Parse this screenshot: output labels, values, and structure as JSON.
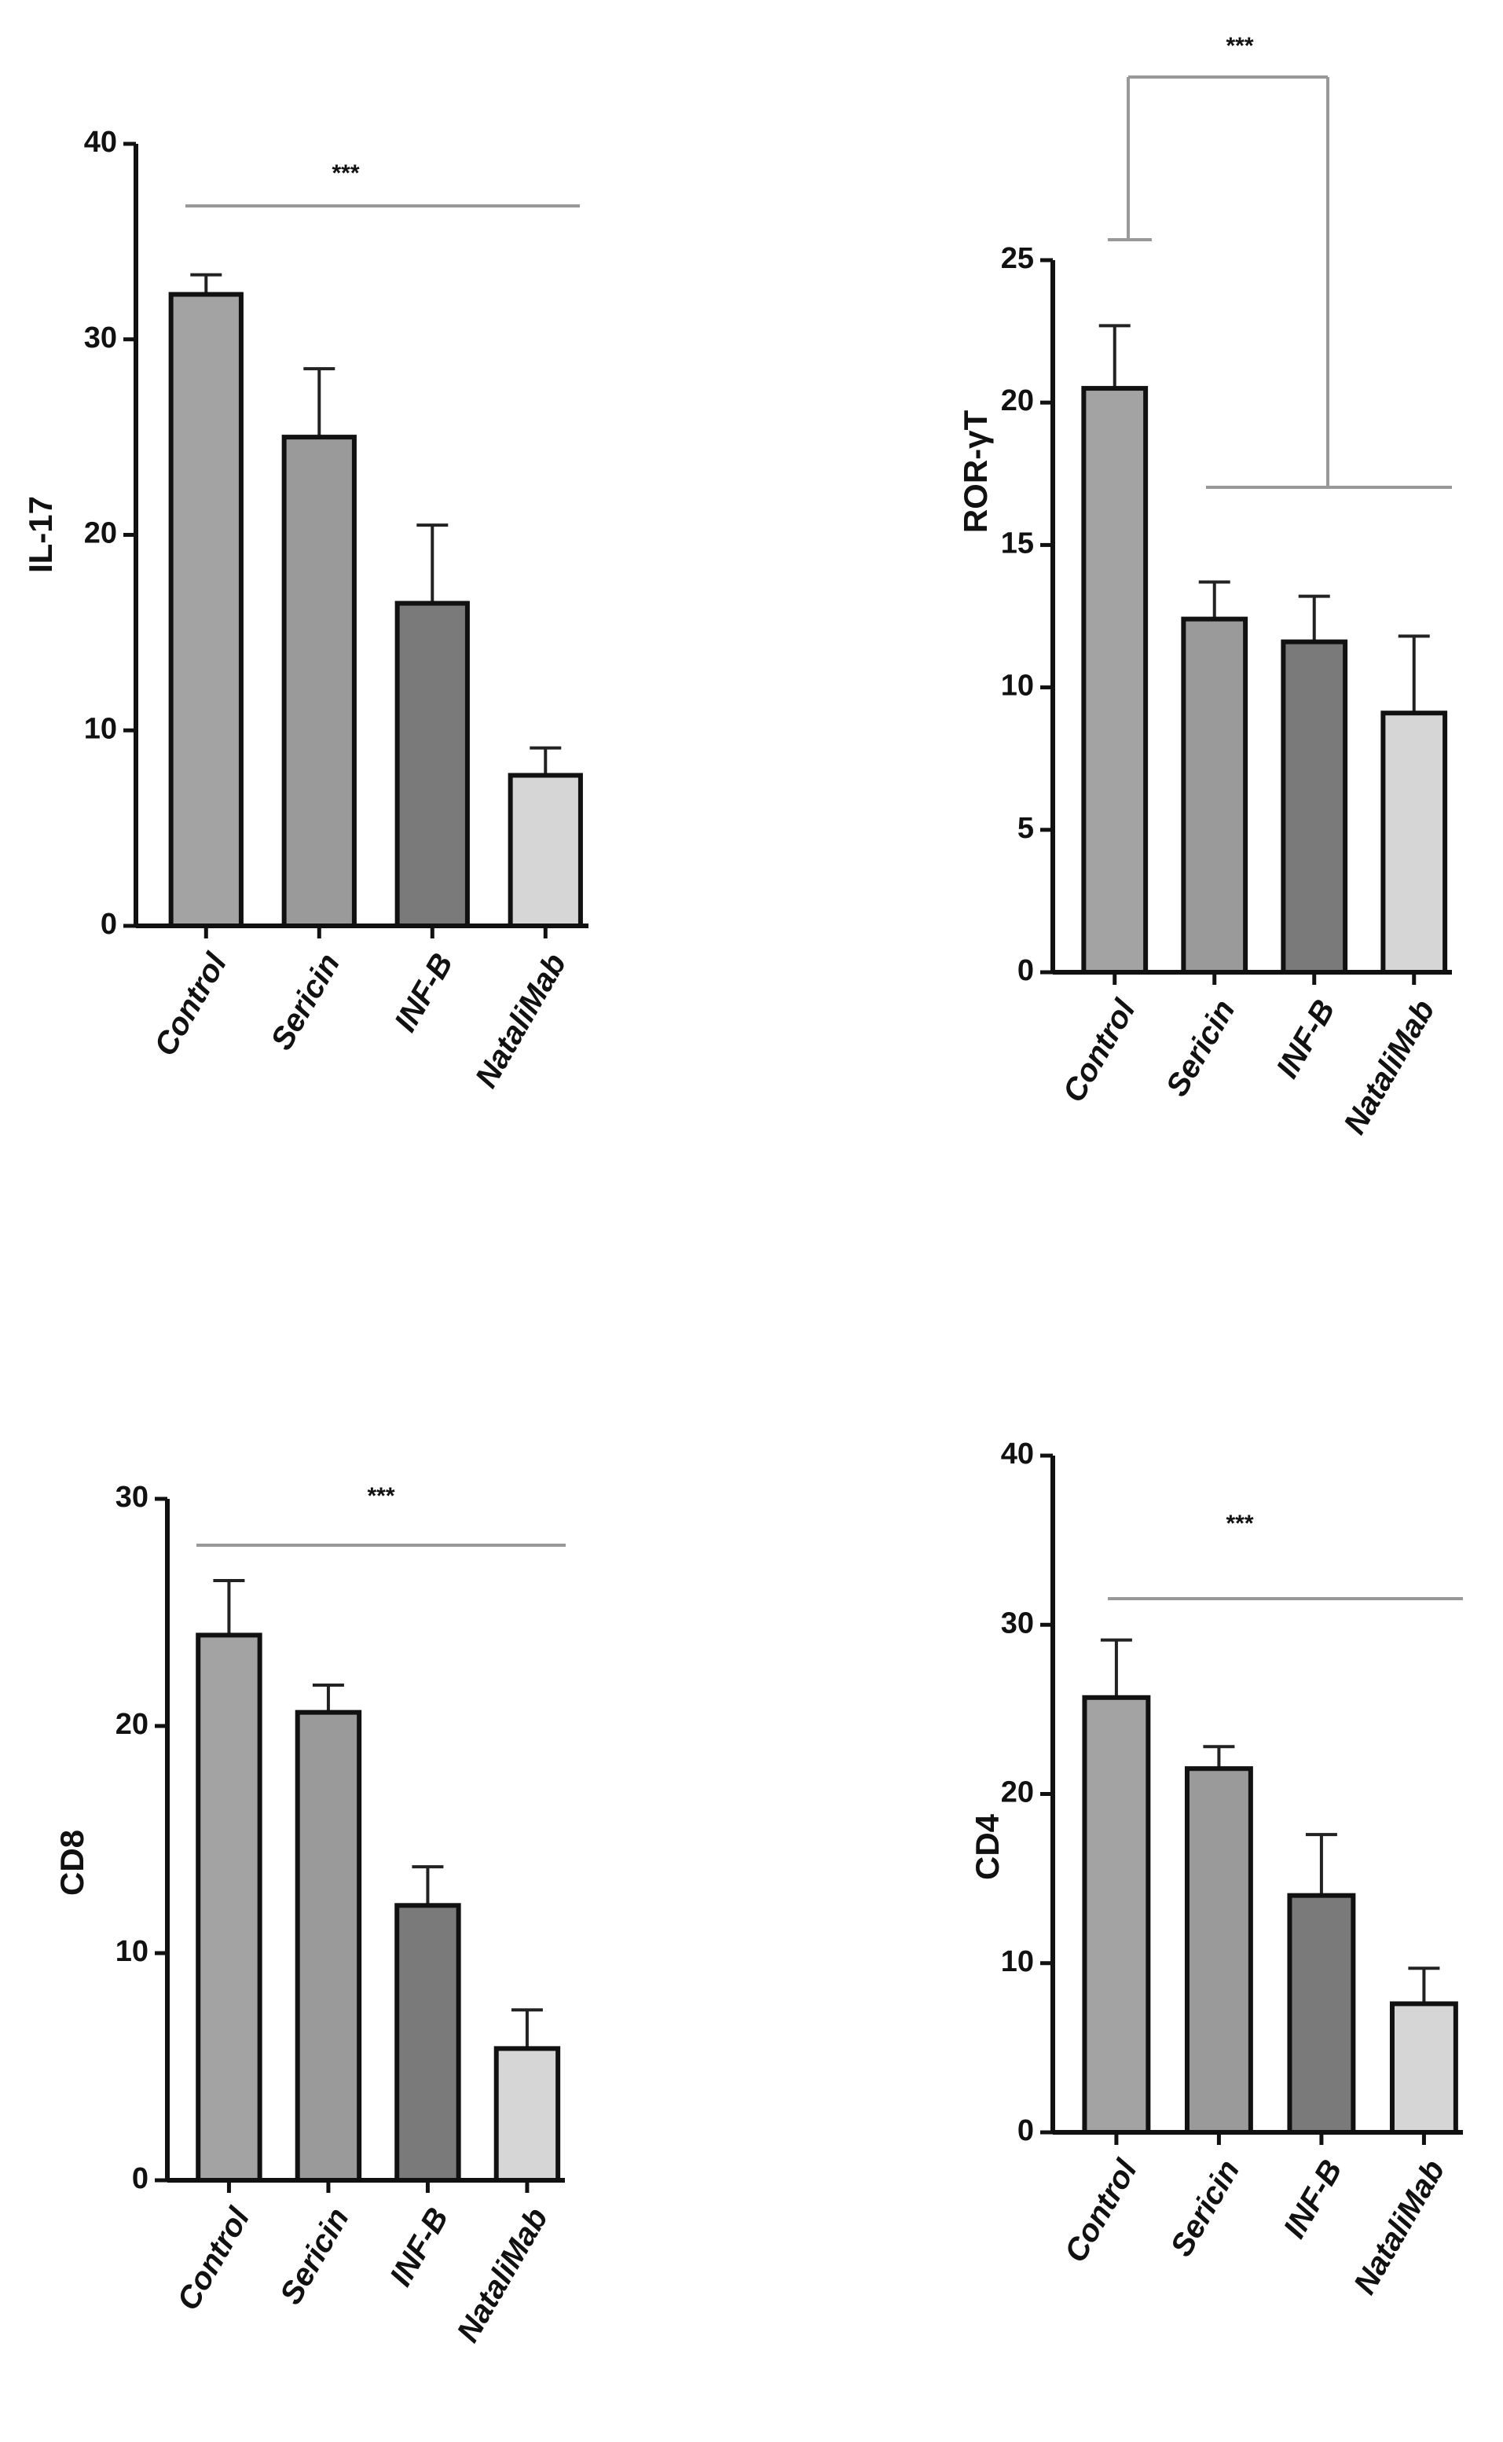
{
  "chart_data": [
    {
      "type": "bar",
      "ylabel": "IL-17",
      "annotation": "***",
      "categories": [
        "Control",
        "Sericin",
        "INF-B",
        "NataliMab"
      ],
      "values": [
        32.3,
        25,
        16.5,
        7.7
      ],
      "errors": [
        1,
        3.5,
        4,
        1.4
      ],
      "colors": [
        "#a3a3a3",
        "#9a9a9a",
        "#7a7a7a",
        "#d6d6d6"
      ],
      "ylim": [
        0,
        40
      ],
      "yticks": [
        0,
        10,
        20,
        30,
        40
      ]
    },
    {
      "type": "bar",
      "ylabel": "ROR-γT",
      "annotation": "***",
      "categories": [
        "Control",
        "Sericin",
        "INF-B",
        "NataliMab"
      ],
      "values": [
        20.5,
        12.4,
        11.6,
        9.1
      ],
      "errors": [
        2.2,
        1.3,
        1.6,
        2.7
      ],
      "colors": [
        "#a3a3a3",
        "#9a9a9a",
        "#7a7a7a",
        "#d6d6d6"
      ],
      "ylim": [
        0,
        25
      ],
      "yticks": [
        0,
        5,
        10,
        15,
        20,
        25
      ]
    },
    {
      "type": "bar",
      "ylabel": "CD8",
      "annotation": "***",
      "categories": [
        "Control",
        "Sericin",
        "INF-B",
        "NataliMab"
      ],
      "values": [
        24,
        20.6,
        12.1,
        5.8
      ],
      "errors": [
        2.4,
        1.2,
        1.7,
        1.7
      ],
      "colors": [
        "#a3a3a3",
        "#9a9a9a",
        "#7a7a7a",
        "#d6d6d6"
      ],
      "ylim": [
        0,
        30
      ],
      "yticks": [
        0,
        10,
        20,
        30
      ]
    },
    {
      "type": "bar",
      "ylabel": "CD4",
      "annotation": "***",
      "categories": [
        "Control",
        "Sericin",
        "INF-B",
        "NataliMab"
      ],
      "values": [
        25.7,
        21.5,
        14,
        7.6
      ],
      "errors": [
        3.4,
        1.3,
        3.6,
        2.1
      ],
      "colors": [
        "#a3a3a3",
        "#9a9a9a",
        "#7a7a7a",
        "#d6d6d6"
      ],
      "ylim": [
        0,
        40
      ],
      "yticks": [
        0,
        10,
        20,
        30,
        40
      ]
    }
  ]
}
